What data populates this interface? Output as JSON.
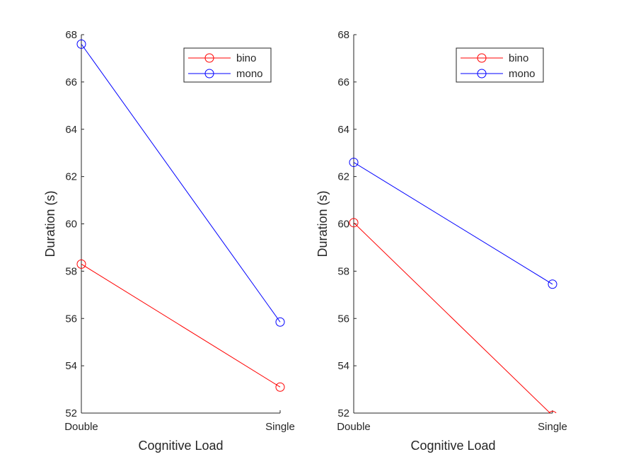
{
  "chart_data": [
    {
      "type": "line",
      "categories": [
        "Double",
        "Single"
      ],
      "xlabel": "Cognitive Load",
      "ylabel": "Duration (s)",
      "ylim": [
        52,
        68
      ],
      "yticks": [
        52,
        54,
        56,
        58,
        60,
        62,
        64,
        66,
        68
      ],
      "grid": false,
      "legend_position": "top-right",
      "series": [
        {
          "name": "bino",
          "color": "#ff0000",
          "marker": "circle",
          "values": [
            58.3,
            53.1
          ]
        },
        {
          "name": "mono",
          "color": "#0000ff",
          "marker": "circle",
          "values": [
            67.6,
            55.85
          ]
        }
      ]
    },
    {
      "type": "line",
      "categories": [
        "Double",
        "Single"
      ],
      "xlabel": "Cognitive Load",
      "ylabel": "Duration (s)",
      "ylim": [
        52,
        68
      ],
      "yticks": [
        52,
        54,
        56,
        58,
        60,
        62,
        64,
        66,
        68
      ],
      "grid": false,
      "legend_position": "top-right",
      "series": [
        {
          "name": "bino",
          "color": "#ff0000",
          "marker": "circle",
          "values": [
            60.05,
            51.9
          ]
        },
        {
          "name": "mono",
          "color": "#0000ff",
          "marker": "circle",
          "values": [
            62.6,
            57.45
          ]
        }
      ]
    }
  ]
}
